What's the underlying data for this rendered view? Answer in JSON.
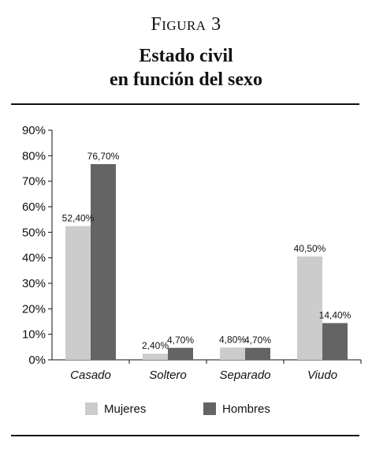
{
  "figure": {
    "label": "Figura 3",
    "title_line1": "Estado civil",
    "title_line2": "en función del sexo"
  },
  "chart_data": {
    "type": "bar",
    "categories": [
      "Casado",
      "Soltero",
      "Separado",
      "Viudo"
    ],
    "series": [
      {
        "name": "Mujeres",
        "values": [
          52.4,
          2.4,
          4.8,
          40.5
        ],
        "labels": [
          "52,40%",
          "2,40%",
          "4,80%",
          "40,50%"
        ]
      },
      {
        "name": "Hombres",
        "values": [
          76.7,
          4.7,
          4.7,
          14.4
        ],
        "labels": [
          "76,70%",
          "4,70%",
          "4,70%",
          "14,40%"
        ]
      }
    ],
    "colors": {
      "Mujeres": "#cccccc",
      "Hombres": "#646464"
    },
    "ylim": [
      0,
      90
    ],
    "y_ticks": [
      0,
      10,
      20,
      30,
      40,
      50,
      60,
      70,
      80,
      90
    ],
    "y_tick_labels": [
      "0%",
      "10%",
      "20%",
      "30%",
      "40%",
      "50%",
      "60%",
      "70%",
      "80%",
      "90%"
    ],
    "grid": false,
    "legend": "bottom"
  }
}
